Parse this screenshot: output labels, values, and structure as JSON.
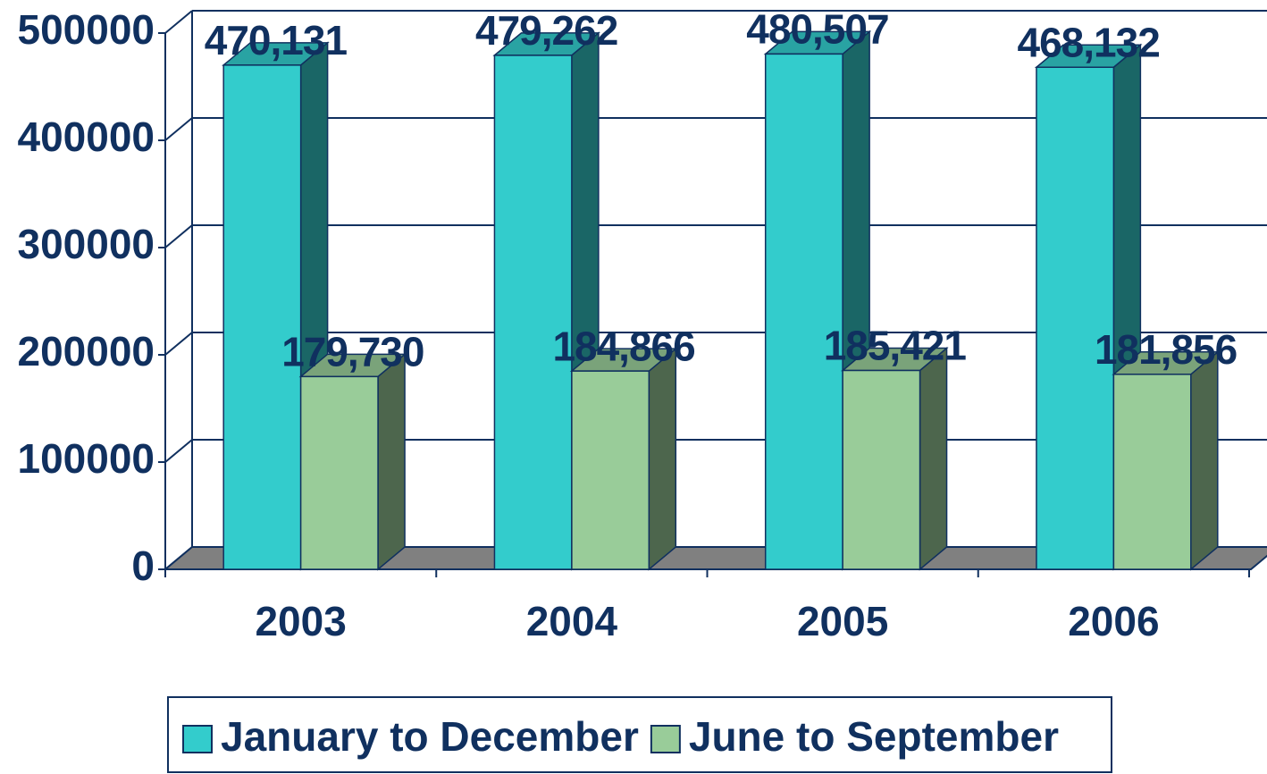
{
  "chart_data": {
    "type": "bar3d",
    "categories": [
      "2003",
      "2004",
      "2005",
      "2006"
    ],
    "series": [
      {
        "name": "January to December",
        "color": "#33cccc",
        "values": [
          470131,
          479262,
          480507,
          468132
        ],
        "value_labels": [
          "470,131",
          "479,262",
          "480,507",
          "468,132"
        ]
      },
      {
        "name": "June to September",
        "color": "#99cc99",
        "values": [
          179730,
          184866,
          185421,
          181856
        ],
        "value_labels": [
          "179,730",
          "184,866",
          "185,421",
          "181,856"
        ]
      }
    ],
    "ylim": [
      0,
      500000
    ],
    "yticks": [
      0,
      100000,
      200000,
      300000,
      400000,
      500000
    ],
    "grid": true,
    "legend": "bottom"
  }
}
